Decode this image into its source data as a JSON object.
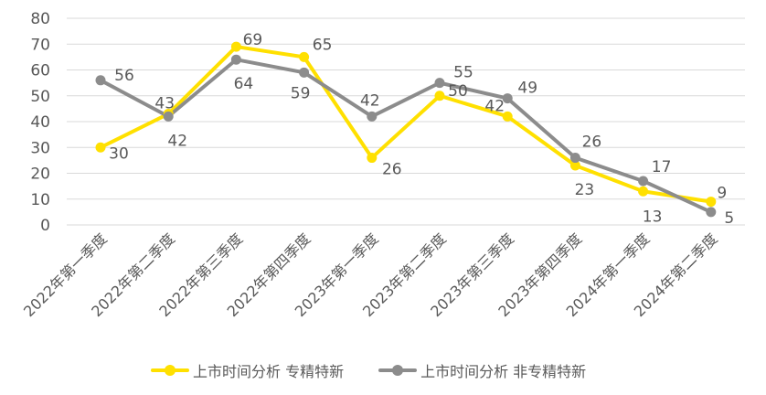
{
  "chart_data": {
    "type": "line",
    "categories": [
      "2022年第一季度",
      "2022年第二季度",
      "2022年第三季度",
      "2022年第四季度",
      "2023年第一季度",
      "2023年第二季度",
      "2023年第三季度",
      "2023年第四季度",
      "2024年第一季度",
      "2024年第二季度"
    ],
    "series": [
      {
        "name": "上市时间分析 专精特新",
        "color": "#FFE000",
        "values": [
          30,
          43,
          69,
          65,
          26,
          50,
          42,
          23,
          13,
          9
        ]
      },
      {
        "name": "上市时间分析 非专精特新",
        "color": "#8C8C8C",
        "values": [
          56,
          42,
          64,
          59,
          42,
          55,
          49,
          26,
          17,
          5
        ]
      }
    ],
    "ylim": [
      0,
      80
    ],
    "yticks": [
      0,
      10,
      20,
      30,
      40,
      50,
      60,
      70,
      80
    ],
    "grid": true,
    "data_labels": true,
    "legend": "bottom"
  }
}
